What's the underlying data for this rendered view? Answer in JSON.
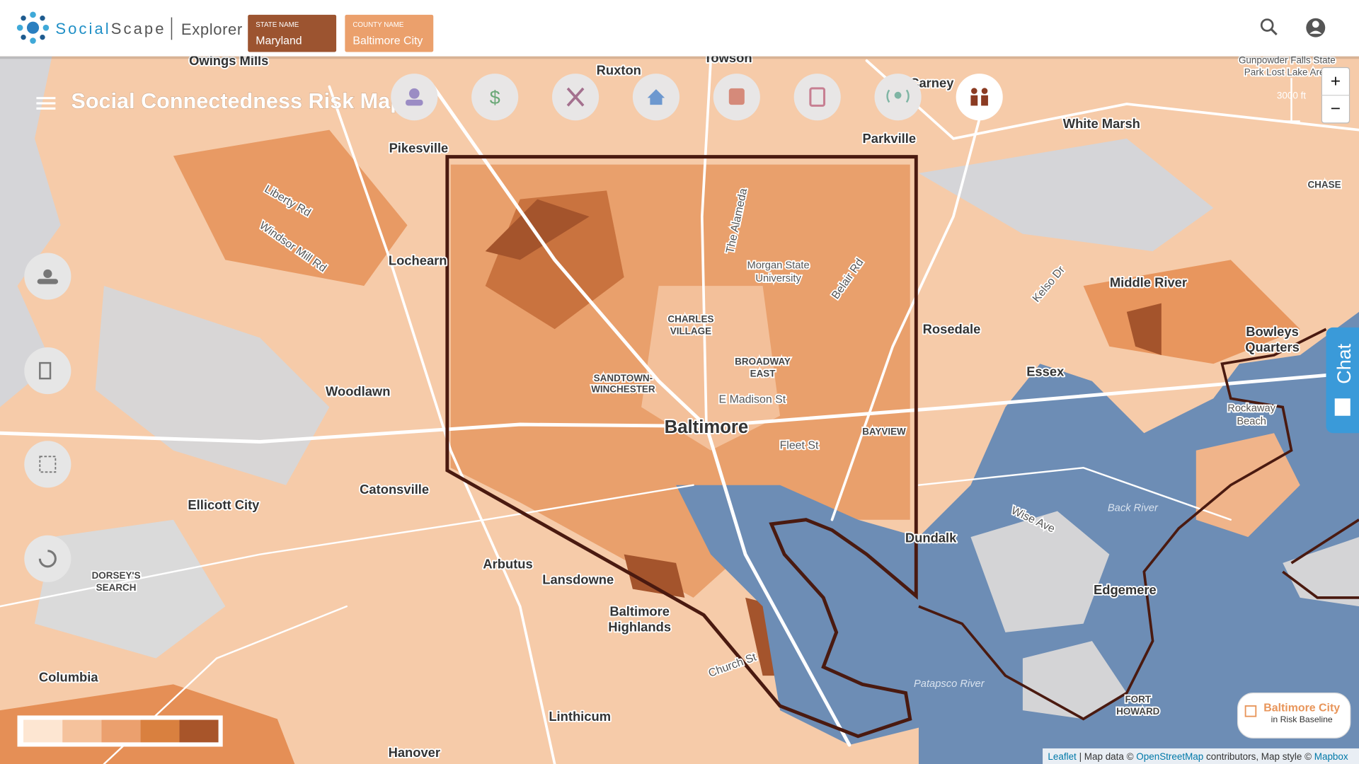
{
  "header": {
    "brand_a": "Social",
    "brand_b": "Scape",
    "product": "Explorer",
    "state": {
      "caption": "STATE NAME",
      "value": "Maryland"
    },
    "county": {
      "caption": "COUNTY NAME",
      "value": "Baltimore City"
    }
  },
  "map": {
    "title": "Social Connectedness Risk Map",
    "scale": "3000 ft",
    "zoom_in": "+",
    "zoom_out": "−",
    "chat": "Chat",
    "labels": [
      "Owings Mills",
      "Ruxton",
      "Towson",
      "Carney",
      "Pikesville",
      "Parkville",
      "White Marsh",
      "Lochearn",
      "Woodlawn",
      "Catonsville",
      "Ellicott City",
      "Arbutus",
      "Lansdowne",
      "Baltimore",
      "Highlands",
      "Baltimore",
      "Rosedale",
      "Essex",
      "Middle River",
      "Bowleys",
      "Quarters",
      "Dundalk",
      "Edgemere",
      "Columbia",
      "Linthicum",
      "Hanover"
    ],
    "neighborhoods": [
      "CHARLES",
      "VILLAGE",
      "SANDTOWN-",
      "WINCHESTER",
      "BROADWAY",
      "EAST",
      "BAYVIEW",
      "DORSEY'S",
      "SEARCH",
      "FORT",
      "HOWARD",
      "CHASE"
    ],
    "roads": [
      "E Madison St",
      "Fleet St",
      "Morgan State",
      "University",
      "Belair Rd",
      "The Alameda",
      "Liberty Rd",
      "Windsor Mill Rd",
      "Rockaway",
      "Beach",
      "Kelso Dr",
      "Church St",
      "Wise Ave",
      "Gunpowder Falls State",
      "Park Lost Lake Area"
    ],
    "water": [
      "Patapsco River",
      "Back River"
    ],
    "legend": {
      "colors": [
        "#fde6d2",
        "#f5c29c",
        "#eba06e",
        "#d9803f",
        "#a8552a"
      ]
    },
    "card": {
      "title": "Baltimore City",
      "subtitle": "in Risk Baseline"
    },
    "attribution": {
      "leaflet": "Leaflet",
      "map_data": "| Map data ©",
      "osm": "OpenStreetMap",
      "style": "contributors, Map style ©",
      "mapbox": "Mapbox"
    }
  }
}
